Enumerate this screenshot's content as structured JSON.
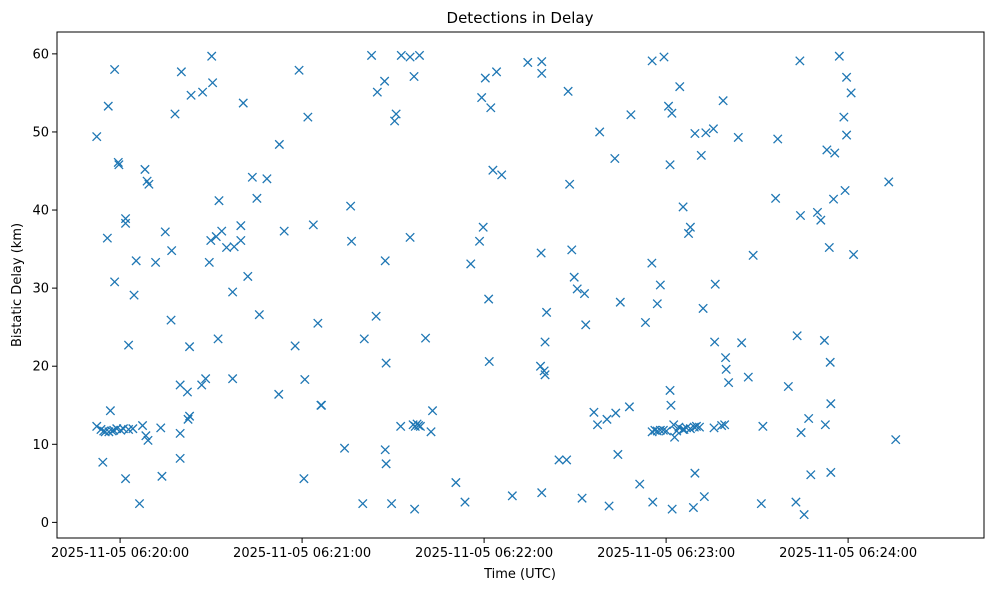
{
  "chart_data": {
    "type": "scatter",
    "title": "Detections in Delay",
    "xlabel": "Time (UTC)",
    "ylabel": "Bistatic Delay (km)",
    "marker": "x",
    "marker_color": "#1f77b4",
    "grid": false,
    "legend": "none",
    "x_unit": "seconds after 2025-11-05 06:20:00 UTC",
    "xlim": [
      -20.8,
      284.8
    ],
    "ylim": [
      -2.0,
      62.8
    ],
    "xticks": [
      {
        "t": 0,
        "label": "2025-11-05 06:20:00"
      },
      {
        "t": 60,
        "label": "2025-11-05 06:21:00"
      },
      {
        "t": 120,
        "label": "2025-11-05 06:22:00"
      },
      {
        "t": 180,
        "label": "2025-11-05 06:23:00"
      },
      {
        "t": 240,
        "label": "2025-11-05 06:24:00"
      }
    ],
    "yticks": [
      0,
      10,
      20,
      30,
      40,
      50,
      60
    ],
    "points": [
      [
        -7.7,
        49.4
      ],
      [
        -7.7,
        12.3
      ],
      [
        -6.3,
        11.9
      ],
      [
        -5.7,
        7.7
      ],
      [
        -5.4,
        11.7
      ],
      [
        -4.9,
        11.6
      ],
      [
        -4.2,
        36.4
      ],
      [
        -3.9,
        53.3
      ],
      [
        -3.7,
        11.6
      ],
      [
        -3.2,
        14.3
      ],
      [
        -2.6,
        11.7
      ],
      [
        -2.1,
        11.8
      ],
      [
        -1.8,
        58.0
      ],
      [
        -1.8,
        30.8
      ],
      [
        -1.1,
        12.0
      ],
      [
        -0.6,
        46.1
      ],
      [
        -0.4,
        45.8
      ],
      [
        0.2,
        11.8
      ],
      [
        1.1,
        12.0
      ],
      [
        1.8,
        5.6
      ],
      [
        1.8,
        38.9
      ],
      [
        1.8,
        38.3
      ],
      [
        2.8,
        11.9
      ],
      [
        2.8,
        22.7
      ],
      [
        4.2,
        12.0
      ],
      [
        4.6,
        29.1
      ],
      [
        5.3,
        33.5
      ],
      [
        6.4,
        2.4
      ],
      [
        7.4,
        12.4
      ],
      [
        8.2,
        45.2
      ],
      [
        8.5,
        11.1
      ],
      [
        8.9,
        43.7
      ],
      [
        9.2,
        10.5
      ],
      [
        9.5,
        43.3
      ],
      [
        11.7,
        33.3
      ],
      [
        13.4,
        12.1
      ],
      [
        13.8,
        5.9
      ],
      [
        14.9,
        37.2
      ],
      [
        16.8,
        25.9
      ],
      [
        17.0,
        34.8
      ],
      [
        18.1,
        52.3
      ],
      [
        19.8,
        17.6
      ],
      [
        19.8,
        8.2
      ],
      [
        19.8,
        11.4
      ],
      [
        20.2,
        57.7
      ],
      [
        22.2,
        16.7
      ],
      [
        22.4,
        13.2
      ],
      [
        22.9,
        22.5
      ],
      [
        22.9,
        13.6
      ],
      [
        23.4,
        54.7
      ],
      [
        26.9,
        17.6
      ],
      [
        27.2,
        55.1
      ],
      [
        28.2,
        18.4
      ],
      [
        29.4,
        33.3
      ],
      [
        29.9,
        36.1
      ],
      [
        30.2,
        59.7
      ],
      [
        30.5,
        56.3
      ],
      [
        31.7,
        36.6
      ],
      [
        32.3,
        23.5
      ],
      [
        32.6,
        41.2
      ],
      [
        33.5,
        37.3
      ],
      [
        35.1,
        35.2
      ],
      [
        37.1,
        18.4
      ],
      [
        37.1,
        29.5
      ],
      [
        37.6,
        35.3
      ],
      [
        39.8,
        36.1
      ],
      [
        39.8,
        38.0
      ],
      [
        40.6,
        53.7
      ],
      [
        42.1,
        31.5
      ],
      [
        43.6,
        44.2
      ],
      [
        45.1,
        41.5
      ],
      [
        45.9,
        26.6
      ],
      [
        48.4,
        44.0
      ],
      [
        52.3,
        16.4
      ],
      [
        52.5,
        48.4
      ],
      [
        54.1,
        37.3
      ],
      [
        57.7,
        22.6
      ],
      [
        59.0,
        57.9
      ],
      [
        60.6,
        5.6
      ],
      [
        60.9,
        18.3
      ],
      [
        61.9,
        51.9
      ],
      [
        63.7,
        38.1
      ],
      [
        65.2,
        25.5
      ],
      [
        66.2,
        15.0
      ],
      [
        66.4,
        15.0
      ],
      [
        74.0,
        9.5
      ],
      [
        76.0,
        40.5
      ],
      [
        76.3,
        36.0
      ],
      [
        80.0,
        2.4
      ],
      [
        80.5,
        23.5
      ],
      [
        82.9,
        59.8
      ],
      [
        84.4,
        26.4
      ],
      [
        84.8,
        55.1
      ],
      [
        87.2,
        56.5
      ],
      [
        87.4,
        33.5
      ],
      [
        87.4,
        9.3
      ],
      [
        87.7,
        7.5
      ],
      [
        87.7,
        20.4
      ],
      [
        89.5,
        2.4
      ],
      [
        90.5,
        51.4
      ],
      [
        91.0,
        52.3
      ],
      [
        92.5,
        12.3
      ],
      [
        92.7,
        59.8
      ],
      [
        95.6,
        59.6
      ],
      [
        95.6,
        36.5
      ],
      [
        96.6,
        12.5
      ],
      [
        96.9,
        57.1
      ],
      [
        97.1,
        1.7
      ],
      [
        97.3,
        12.3
      ],
      [
        97.9,
        12.6
      ],
      [
        98.4,
        12.4
      ],
      [
        98.7,
        59.8
      ],
      [
        99.0,
        12.3
      ],
      [
        100.7,
        23.6
      ],
      [
        102.5,
        11.6
      ],
      [
        103.0,
        14.3
      ],
      [
        110.7,
        5.1
      ],
      [
        113.7,
        2.6
      ],
      [
        115.6,
        33.1
      ],
      [
        118.5,
        36.0
      ],
      [
        119.2,
        54.4
      ],
      [
        119.7,
        37.8
      ],
      [
        120.4,
        56.9
      ],
      [
        121.5,
        28.6
      ],
      [
        121.7,
        20.6
      ],
      [
        122.2,
        53.1
      ],
      [
        122.9,
        45.1
      ],
      [
        124.1,
        57.7
      ],
      [
        125.8,
        44.5
      ],
      [
        129.3,
        3.4
      ],
      [
        134.4,
        58.9
      ],
      [
        138.6,
        20.0
      ],
      [
        138.8,
        34.5
      ],
      [
        139.0,
        59.0
      ],
      [
        139.0,
        57.5
      ],
      [
        139.0,
        3.8
      ],
      [
        139.8,
        19.4
      ],
      [
        140.1,
        23.1
      ],
      [
        140.6,
        26.9
      ],
      [
        140.1,
        18.9
      ],
      [
        144.7,
        8.0
      ],
      [
        147.2,
        8.0
      ],
      [
        147.7,
        55.2
      ],
      [
        148.2,
        43.3
      ],
      [
        148.9,
        34.9
      ],
      [
        149.7,
        31.4
      ],
      [
        150.7,
        29.9
      ],
      [
        152.3,
        3.1
      ],
      [
        153.1,
        29.3
      ],
      [
        153.5,
        25.3
      ],
      [
        156.2,
        14.1
      ],
      [
        157.4,
        12.5
      ],
      [
        158.1,
        50.0
      ],
      [
        160.5,
        13.2
      ],
      [
        161.2,
        2.1
      ],
      [
        163.1,
        46.6
      ],
      [
        163.4,
        14.0
      ],
      [
        164.1,
        8.7
      ],
      [
        164.9,
        28.2
      ],
      [
        167.9,
        14.8
      ],
      [
        168.4,
        52.2
      ],
      [
        171.3,
        4.9
      ],
      [
        173.2,
        25.6
      ],
      [
        175.3,
        33.2
      ],
      [
        175.4,
        11.6
      ],
      [
        175.4,
        59.1
      ],
      [
        175.6,
        2.6
      ],
      [
        176.3,
        11.8
      ],
      [
        177.1,
        11.7
      ],
      [
        177.1,
        28.0
      ],
      [
        178.1,
        11.8
      ],
      [
        178.1,
        30.4
      ],
      [
        179.1,
        11.8
      ],
      [
        179.3,
        59.6
      ],
      [
        180.1,
        11.7
      ],
      [
        180.8,
        53.3
      ],
      [
        181.3,
        16.9
      ],
      [
        181.3,
        45.8
      ],
      [
        181.6,
        15.0
      ],
      [
        181.9,
        52.4
      ],
      [
        182.0,
        1.7
      ],
      [
        182.5,
        12.5
      ],
      [
        182.8,
        10.9
      ],
      [
        183.5,
        11.7
      ],
      [
        184.2,
        12.2
      ],
      [
        184.5,
        55.8
      ],
      [
        185.5,
        11.9
      ],
      [
        185.6,
        40.4
      ],
      [
        185.9,
        11.9
      ],
      [
        186.7,
        12.1
      ],
      [
        187.4,
        37.0
      ],
      [
        188.0,
        12.0
      ],
      [
        188.0,
        37.8
      ],
      [
        189.0,
        1.9
      ],
      [
        189.5,
        49.8
      ],
      [
        189.3,
        12.2
      ],
      [
        189.5,
        6.3
      ],
      [
        190.0,
        12.3
      ],
      [
        191.0,
        12.2
      ],
      [
        191.6,
        47.0
      ],
      [
        192.2,
        27.4
      ],
      [
        192.6,
        3.3
      ],
      [
        193.1,
        49.9
      ],
      [
        195.6,
        50.4
      ],
      [
        195.8,
        12.1
      ],
      [
        196.0,
        23.1
      ],
      [
        196.2,
        30.5
      ],
      [
        198.3,
        12.4
      ],
      [
        198.8,
        54.0
      ],
      [
        199.3,
        12.5
      ],
      [
        199.6,
        21.1
      ],
      [
        199.8,
        19.6
      ],
      [
        200.6,
        17.9
      ],
      [
        203.8,
        49.3
      ],
      [
        204.9,
        23.0
      ],
      [
        207.1,
        18.6
      ],
      [
        208.7,
        34.2
      ],
      [
        211.4,
        2.4
      ],
      [
        211.9,
        12.3
      ],
      [
        216.1,
        41.5
      ],
      [
        216.8,
        49.1
      ],
      [
        220.3,
        17.4
      ],
      [
        222.8,
        2.6
      ],
      [
        223.2,
        23.9
      ],
      [
        224.1,
        59.1
      ],
      [
        224.3,
        39.3
      ],
      [
        224.5,
        11.5
      ],
      [
        225.5,
        1.0
      ],
      [
        227.0,
        13.3
      ],
      [
        227.7,
        6.1
      ],
      [
        229.9,
        39.7
      ],
      [
        231.0,
        38.7
      ],
      [
        232.2,
        23.3
      ],
      [
        232.5,
        12.5
      ],
      [
        233.0,
        47.7
      ],
      [
        233.8,
        35.2
      ],
      [
        234.1,
        20.5
      ],
      [
        234.3,
        6.4
      ],
      [
        234.3,
        15.2
      ],
      [
        235.2,
        41.4
      ],
      [
        235.6,
        47.3
      ],
      [
        237.1,
        59.7
      ],
      [
        238.6,
        51.9
      ],
      [
        239.0,
        42.5
      ],
      [
        239.5,
        57.0
      ],
      [
        239.5,
        49.6
      ],
      [
        241.0,
        55.0
      ],
      [
        241.8,
        34.3
      ],
      [
        253.4,
        43.6
      ],
      [
        255.7,
        10.6
      ]
    ]
  }
}
